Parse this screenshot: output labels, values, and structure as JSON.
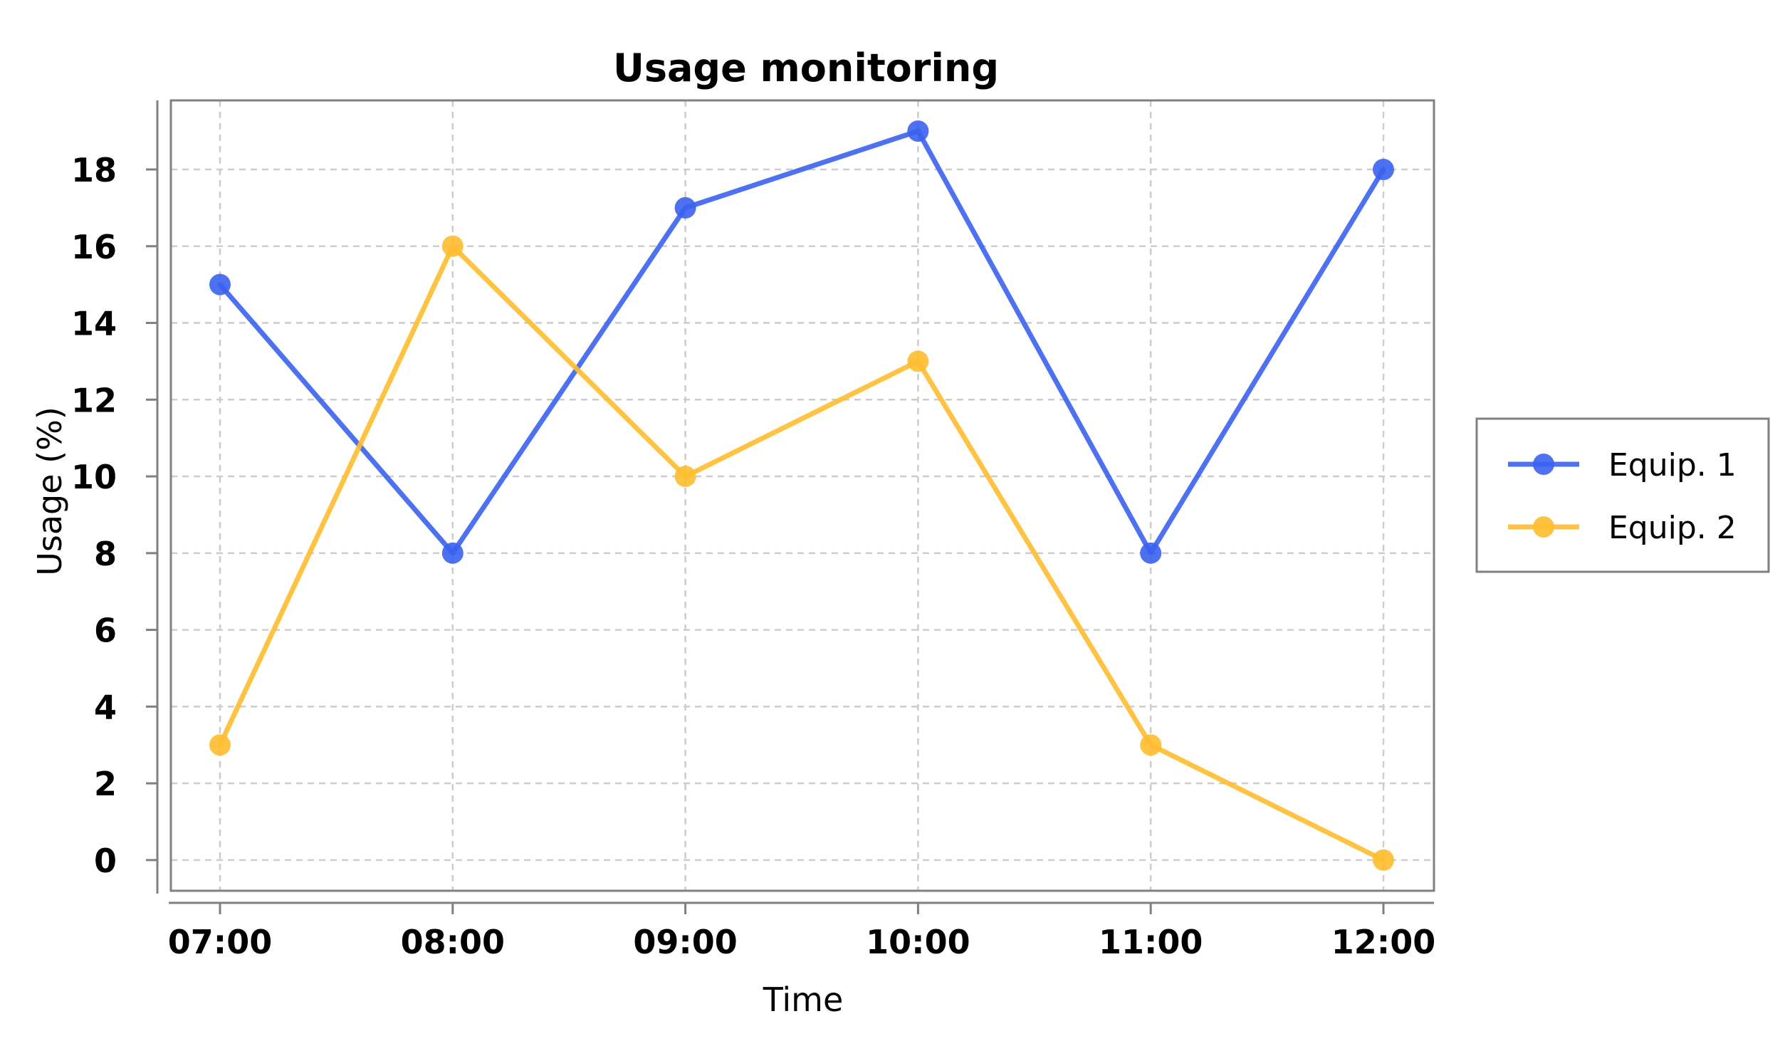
{
  "chart_data": {
    "type": "line",
    "title": "Usage monitoring",
    "xlabel": "Time",
    "ylabel": "Usage (%)",
    "categories": [
      "07:00",
      "08:00",
      "09:00",
      "10:00",
      "11:00",
      "12:00"
    ],
    "yticks": [
      "0",
      "2",
      "4",
      "6",
      "8",
      "10",
      "12",
      "14",
      "16",
      "18"
    ],
    "ylim": [
      -0.8,
      19.8
    ],
    "grid": true,
    "legend_position": "right",
    "series": [
      {
        "name": "Equip. 1",
        "color": "#3a62f0",
        "values": [
          15,
          8,
          17,
          19,
          8,
          18
        ]
      },
      {
        "name": "Equip. 2",
        "color": "#ffbc30",
        "values": [
          3,
          16,
          10,
          13,
          3,
          0
        ]
      }
    ]
  }
}
